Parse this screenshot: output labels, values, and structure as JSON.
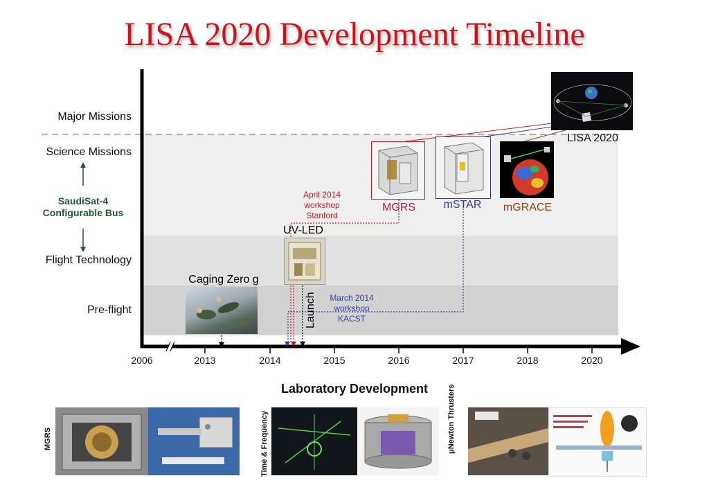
{
  "title": "LISA 2020 Development Timeline",
  "y_axis": {
    "levels": [
      "Major Missions",
      "Science Missions",
      "Flight Technology",
      "Pre-flight"
    ],
    "bus_label_line1": "SaudiSat-4",
    "bus_label_line2": "Configurable Bus"
  },
  "x_axis": {
    "ticks": [
      "2006",
      "2013",
      "2014",
      "2015",
      "2016",
      "2017",
      "2018",
      "2020"
    ]
  },
  "milestones": {
    "caging": "Caging Zero g",
    "uvled": "UV-LED",
    "launch": "Launch",
    "mgrs": "MGRS",
    "mstar": "mSTAR",
    "mgrace": "mGRACE",
    "lisa": "LISA 2020"
  },
  "workshops": {
    "stanford": [
      "April 2014",
      "workshop",
      "Stanford"
    ],
    "kacst": [
      "March 2014",
      "workshop",
      "KACST"
    ]
  },
  "lab_section": {
    "title": "Laboratory Development",
    "captions": [
      "MGRS",
      "Time & Frequency",
      "μNewton Thrusters"
    ]
  },
  "colors": {
    "title": "#c8161d",
    "mgrs": "#c8161d",
    "mstar": "#3a3aa0",
    "mgrace": "#8b4513",
    "saudi_green": "#1e5a2e",
    "band_science": "#efefef",
    "band_flight": "#e2e2e2",
    "band_preflight": "#d2d2d2"
  }
}
